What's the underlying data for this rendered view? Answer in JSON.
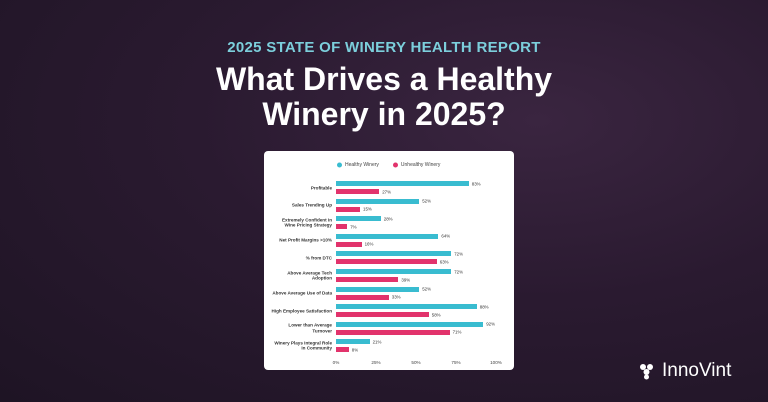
{
  "header": {
    "kicker": "2025 STATE OF WINERY HEALTH REPORT",
    "title": "What Drives a Healthy Winery in 2025?"
  },
  "chart_data": {
    "type": "bar",
    "orientation": "horizontal",
    "categories": [
      "Profitable",
      "Sales Trending Up",
      "Extremely Confident in Wine Pricing Strategy",
      "Net Profit Margins >10%",
      "% from DTC",
      "Above Average Tech Adoption",
      "Above Average Use of Data",
      "High Employee Satisfaction",
      "Lower than Average Turnover",
      "Winery Plays Integral Role in Community"
    ],
    "series": [
      {
        "name": "Healthy Winery",
        "color": "#39bcd0",
        "values": [
          83,
          52,
          28,
          64,
          72,
          72,
          52,
          88,
          92,
          21
        ],
        "value_labels": [
          "83%",
          "52%",
          "28%",
          "64%",
          "72%",
          "72%",
          "52%",
          "88%",
          "92%",
          "21%"
        ]
      },
      {
        "name": "Unhealthy Winery",
        "color": "#e2336c",
        "values": [
          27,
          15,
          7,
          16,
          63,
          39,
          33,
          58,
          71,
          8
        ],
        "value_labels": [
          "27%",
          "15%",
          "7%",
          "16%",
          "63%",
          "39%",
          "33%",
          "58%",
          "71%",
          "8%"
        ]
      }
    ],
    "xlim": [
      0,
      100
    ],
    "xticks": [
      {
        "value": 0,
        "label": "0%"
      },
      {
        "value": 25,
        "label": "25%"
      },
      {
        "value": 50,
        "label": "50%"
      },
      {
        "value": 75,
        "label": "75%"
      },
      {
        "value": 100,
        "label": "100%"
      }
    ],
    "legend": "top"
  },
  "brand": "InnoVint"
}
